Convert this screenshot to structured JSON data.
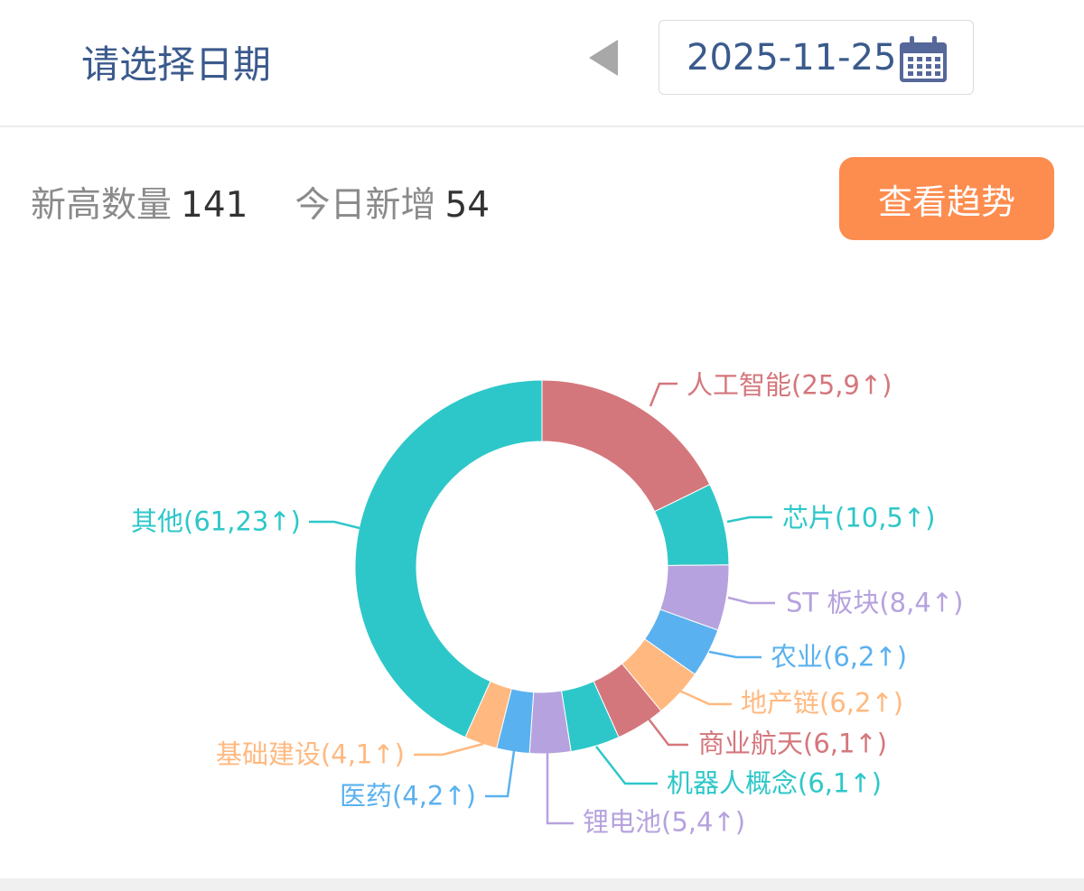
{
  "header": {
    "title": "请选择日期",
    "date": "2025-11-25",
    "prev_icon": "triangle-left-icon",
    "calendar_icon": "calendar-icon"
  },
  "stats": {
    "high_label": "新高数量",
    "high_value": "141",
    "new_label": "今日新增",
    "new_value": "54"
  },
  "trend_button": "查看趋势",
  "colors": {
    "accent": "#fd8c4f",
    "title": "#3b5a8c"
  },
  "chart_data": {
    "type": "pie",
    "donut": true,
    "series": [
      {
        "name": "人工智能",
        "value": 25,
        "new": 9,
        "label": "人工智能(25,9↑)",
        "color": "#d4777c"
      },
      {
        "name": "芯片",
        "value": 10,
        "new": 5,
        "label": "芯片(10,5↑)",
        "color": "#2ec7c9"
      },
      {
        "name": "ST板块",
        "value": 8,
        "new": 4,
        "label": "ST 板块(8,4↑)",
        "color": "#b6a2de"
      },
      {
        "name": "农业",
        "value": 6,
        "new": 2,
        "label": "农业(6,2↑)",
        "color": "#5ab1ef"
      },
      {
        "name": "地产链",
        "value": 6,
        "new": 2,
        "label": "地产链(6,2↑)",
        "color": "#ffb980"
      },
      {
        "name": "商业航天",
        "value": 6,
        "new": 1,
        "label": "商业航天(6,1↑)",
        "color": "#d4777c"
      },
      {
        "name": "机器人概念",
        "value": 6,
        "new": 1,
        "label": "机器人概念(6,1↑)",
        "color": "#2ec7c9"
      },
      {
        "name": "锂电池",
        "value": 5,
        "new": 4,
        "label": "锂电池(5,4↑)",
        "color": "#b6a2de"
      },
      {
        "name": "医药",
        "value": 4,
        "new": 2,
        "label": "医药(4,2↑)",
        "color": "#5ab1ef"
      },
      {
        "name": "基础建设",
        "value": 4,
        "new": 1,
        "label": "基础建设(4,1↑)",
        "color": "#ffb980"
      },
      {
        "name": "其他",
        "value": 61,
        "new": 23,
        "label": "其他(61,23↑)",
        "color": "#2ec7c9"
      }
    ]
  }
}
